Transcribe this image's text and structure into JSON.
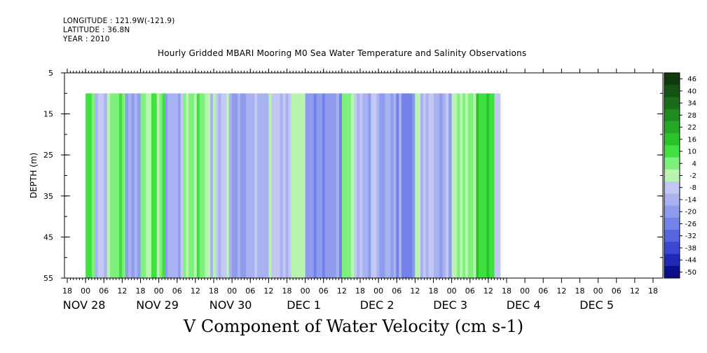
{
  "header": {
    "longitude": "LONGITUDE : 121.9W(-121.9)",
    "latitude": "LATITUDE : 36.8N",
    "year": "YEAR : 2010"
  },
  "chart_data": {
    "type": "heatmap",
    "title": "Hourly Gridded MBARI Mooring M0 Sea Water Temperature and Salinity Observations",
    "xlabel": "V Component of Water Velocity (cm s-1)",
    "ylabel": "DEPTH (m)",
    "x_unit": "hours since NOV 28 00",
    "x_hours_range": [
      -9,
      138
    ],
    "data_hours_range": [
      0,
      136
    ],
    "ylim": [
      5,
      55
    ],
    "y_inverted": true,
    "data_depth_range": [
      10,
      55
    ],
    "y_ticks": [
      5,
      15,
      25,
      35,
      45,
      55
    ],
    "x_hour_tick_labels": [
      "18",
      "00",
      "06",
      "12",
      "18",
      "00",
      "06",
      "12",
      "18",
      "00",
      "06",
      "12",
      "18",
      "00",
      "06",
      "12",
      "18",
      "00",
      "06",
      "12",
      "18",
      "00",
      "06",
      "12",
      "18",
      "00",
      "06",
      "12",
      "18",
      "00",
      "06",
      "12",
      "18"
    ],
    "x_date_labels": [
      {
        "text": "NOV 28",
        "hour": 0
      },
      {
        "text": "NOV 29",
        "hour": 24
      },
      {
        "text": "NOV 30",
        "hour": 48
      },
      {
        "text": "DEC  1",
        "hour": 72
      },
      {
        "text": "DEC  2",
        "hour": 96
      },
      {
        "text": "DEC  3",
        "hour": 120
      },
      {
        "text": "DEC  4",
        "hour": 144
      },
      {
        "text": "DEC  5",
        "hour": 168
      }
    ],
    "colorbar": {
      "levels": [
        46,
        40,
        34,
        28,
        22,
        16,
        10,
        4,
        -2,
        -8,
        -14,
        -20,
        -26,
        -32,
        -38,
        -44,
        -50
      ],
      "colors": [
        "#0d3b0d",
        "#145214",
        "#1a6b1a",
        "#1f8a1f",
        "#24a824",
        "#2ac42a",
        "#3fe03f",
        "#7ef07e",
        "#b9f5b0",
        "#c3c8f3",
        "#a9b2f0",
        "#8f9cee",
        "#7382ea",
        "#5866e2",
        "#3b48d4",
        "#2229b8",
        "#0b0f8e"
      ],
      "min": -50,
      "max": 50
    },
    "field_description_bands": [
      {
        "hours": [
          0,
          3
        ],
        "value": 10
      },
      {
        "hours": [
          3,
          8
        ],
        "value": -8
      },
      {
        "hours": [
          8,
          13
        ],
        "value": 4
      },
      {
        "hours": [
          13,
          18
        ],
        "value": -14
      },
      {
        "hours": [
          18,
          26
        ],
        "value": 4
      },
      {
        "hours": [
          26,
          32
        ],
        "value": -14
      },
      {
        "hours": [
          32,
          40
        ],
        "value": 4
      },
      {
        "hours": [
          40,
          47
        ],
        "value": -8
      },
      {
        "hours": [
          47,
          60
        ],
        "value": -14
      },
      {
        "hours": [
          60,
          72
        ],
        "value": -8
      },
      {
        "hours": [
          72,
          84
        ],
        "value": -20
      },
      {
        "hours": [
          84,
          88
        ],
        "value": 4
      },
      {
        "hours": [
          88,
          100
        ],
        "value": -14
      },
      {
        "hours": [
          100,
          108
        ],
        "value": -20
      },
      {
        "hours": [
          108,
          115
        ],
        "value": -8
      },
      {
        "hours": [
          115,
          120
        ],
        "value": -14
      },
      {
        "hours": [
          120,
          128
        ],
        "value": 4
      },
      {
        "hours": [
          128,
          134
        ],
        "value": 10
      },
      {
        "hours": [
          134,
          136
        ],
        "value": -8
      }
    ]
  }
}
